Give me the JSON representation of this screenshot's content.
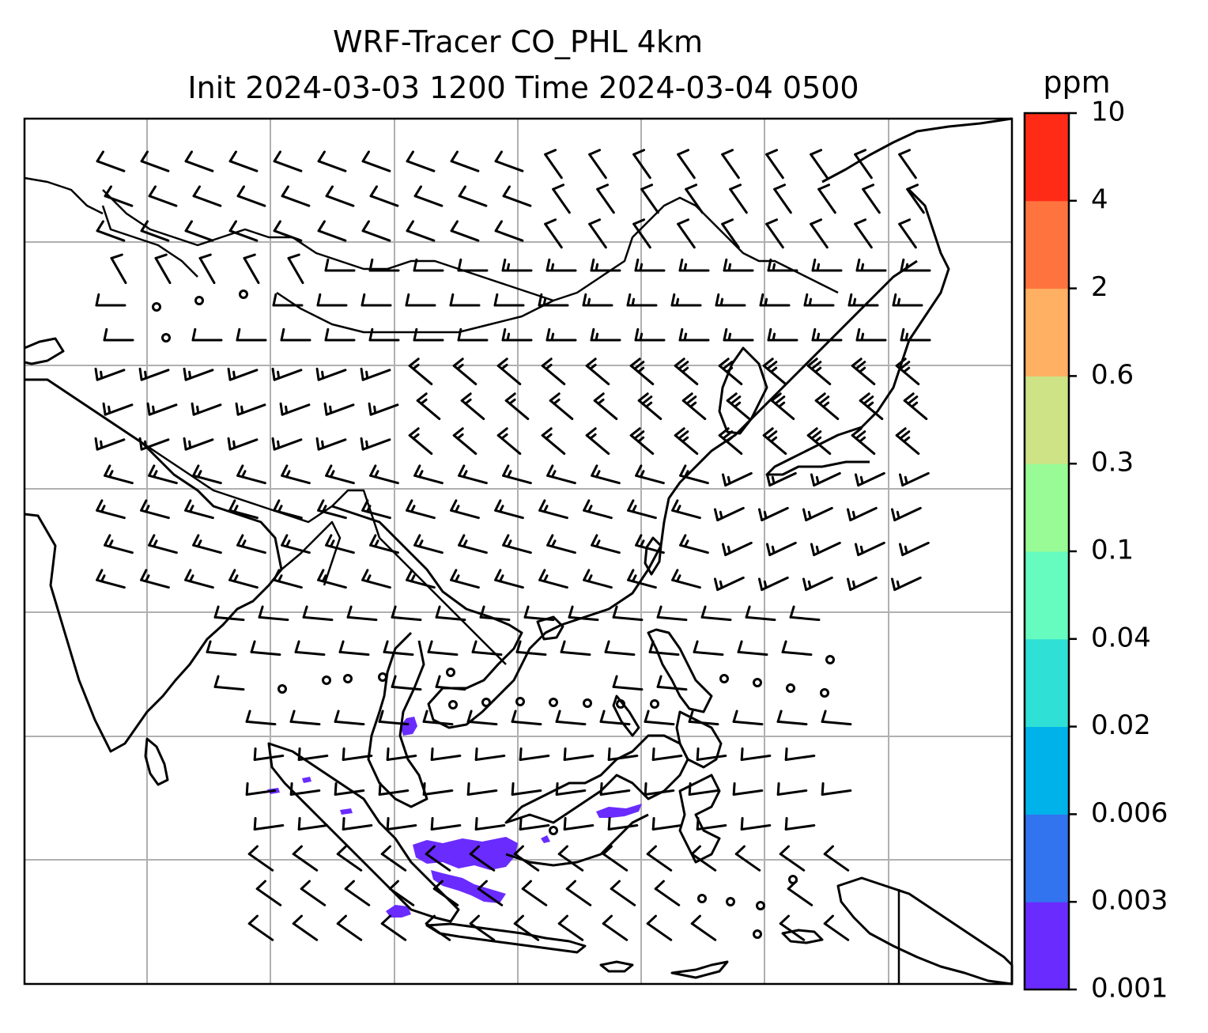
{
  "title": {
    "line1": "WRF-Tracer CO_PHL 4km",
    "line2": "Init 2024-03-03 1200 Time 2024-03-04 0500"
  },
  "colorbar": {
    "unit": "ppm",
    "levels": [
      "0.001",
      "0.003",
      "0.006",
      "0.02",
      "0.04",
      "0.1",
      "0.3",
      "0.6",
      "2",
      "4",
      "10"
    ],
    "colors": [
      "#6a2bff",
      "#3274f0",
      "#00b2ea",
      "#2ee0d6",
      "#66fbbf",
      "#99fb96",
      "#cde386",
      "#ffb062",
      "#ff733f",
      "#ff2b17"
    ]
  },
  "map": {
    "gridlines": true,
    "plume_color": "#6a2bff",
    "features": [
      "coastlines",
      "country borders",
      "wind barbs",
      "CO tracer concentration"
    ]
  }
}
